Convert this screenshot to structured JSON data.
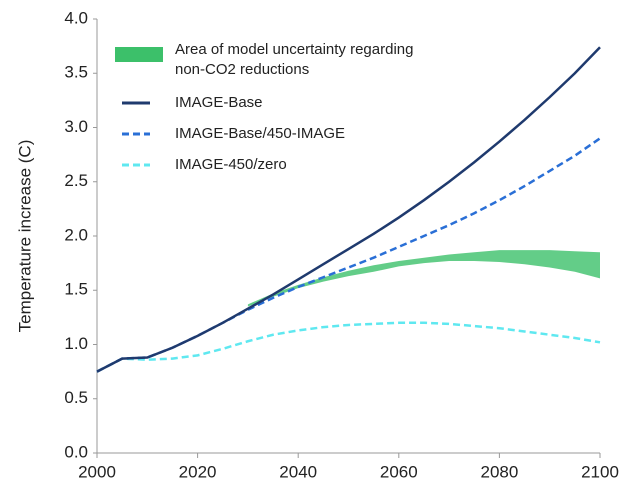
{
  "chart_data": {
    "type": "line",
    "y_label": "Temperature increase (C)",
    "xlim": [
      2000,
      2100
    ],
    "xticks": [
      2000,
      2020,
      2040,
      2060,
      2080,
      2100
    ],
    "ylim": [
      0,
      4
    ],
    "yticks": [
      {
        "value": 0,
        "label": "0.0"
      },
      {
        "value": 0.5,
        "label": "0.5"
      },
      {
        "value": 1,
        "label": "1.0"
      },
      {
        "value": 1.5,
        "label": "1.5"
      },
      {
        "value": 2,
        "label": "2.0"
      },
      {
        "value": 2.5,
        "label": "2.5"
      },
      {
        "value": 3,
        "label": "3.0"
      },
      {
        "value": 3.5,
        "label": "3.5"
      },
      {
        "value": 4,
        "label": "4.0"
      }
    ],
    "band": {
      "name": "Area of model uncertainty regarding non-CO2 reductions",
      "color": "#3cc06a",
      "x": [
        2030,
        2035,
        2040,
        2045,
        2050,
        2055,
        2060,
        2065,
        2070,
        2075,
        2080,
        2085,
        2090,
        2095,
        2100
      ],
      "lower": [
        1.35,
        1.44,
        1.52,
        1.58,
        1.63,
        1.67,
        1.72,
        1.75,
        1.77,
        1.77,
        1.76,
        1.74,
        1.71,
        1.67,
        1.61
      ],
      "upper": [
        1.37,
        1.47,
        1.55,
        1.62,
        1.68,
        1.73,
        1.77,
        1.8,
        1.83,
        1.85,
        1.87,
        1.87,
        1.87,
        1.86,
        1.85
      ]
    },
    "x": [
      2000,
      2005,
      2010,
      2015,
      2020,
      2025,
      2030,
      2035,
      2040,
      2045,
      2050,
      2055,
      2060,
      2065,
      2070,
      2075,
      2080,
      2085,
      2090,
      2095,
      2100
    ],
    "series": [
      {
        "name": "IMAGE-Base",
        "color": "#1f3a6e",
        "dash": "solid",
        "values": [
          0.75,
          0.87,
          0.88,
          0.97,
          1.08,
          1.2,
          1.33,
          1.46,
          1.6,
          1.74,
          1.88,
          2.02,
          2.17,
          2.33,
          2.5,
          2.68,
          2.87,
          3.07,
          3.28,
          3.5,
          3.74
        ]
      },
      {
        "name": "IMAGE-Base/450-IMAGE",
        "color": "#2a6fd6",
        "dash": "dashed",
        "values": [
          0.75,
          0.87,
          0.88,
          0.97,
          1.08,
          1.2,
          1.32,
          1.43,
          1.53,
          1.62,
          1.71,
          1.8,
          1.9,
          2.0,
          2.1,
          2.21,
          2.33,
          2.46,
          2.6,
          2.74,
          2.9
        ]
      },
      {
        "name": "IMAGE-450/zero",
        "color": "#5fe8f0",
        "dash": "dashed",
        "values": [
          0.75,
          0.87,
          0.86,
          0.87,
          0.9,
          0.96,
          1.03,
          1.09,
          1.13,
          1.16,
          1.18,
          1.19,
          1.2,
          1.2,
          1.19,
          1.17,
          1.15,
          1.12,
          1.09,
          1.06,
          1.02
        ]
      }
    ]
  }
}
